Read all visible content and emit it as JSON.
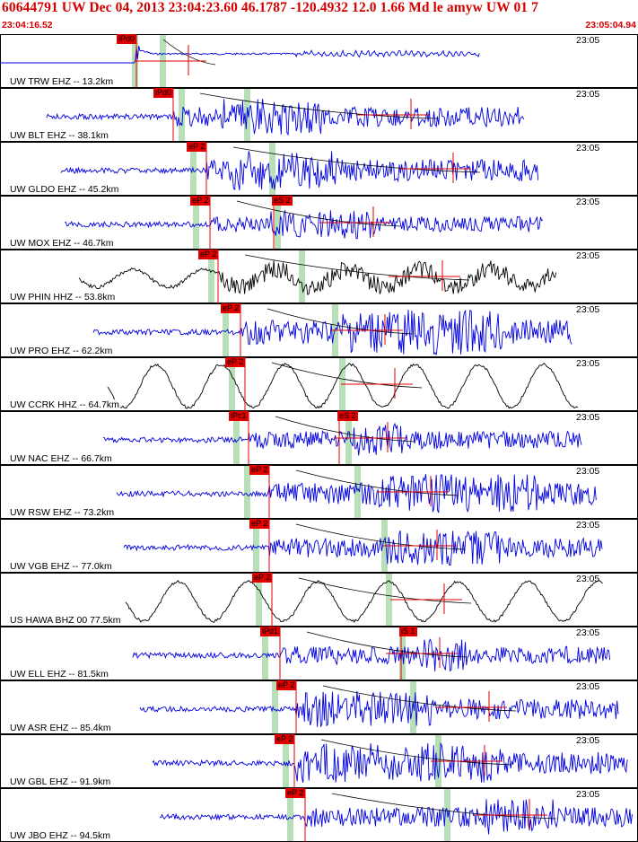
{
  "header": {
    "title": "60644791 UW Dec 04, 2013 23:04:23.60    46.1787 -120.4932 12.0 1.66 Md le amyw UW 01    7",
    "time_start": "23:04:16.52",
    "time_end": "23:05:04.94"
  },
  "colors": {
    "header_text": "#d40000",
    "trace_blue": "#0000e0",
    "trace_black": "#000000",
    "pick_red": "#e00000",
    "shade_green": "#b8e0b8",
    "border": "#000000"
  },
  "panels": [
    {
      "label": "UW TRW EHZ -- 13.2km",
      "time": "23:05",
      "color": "blue",
      "picks": [
        {
          "text": "iPd0"
        }
      ]
    },
    {
      "label": "UW BLT EHZ -- 38.1km",
      "time": "23:05",
      "color": "blue",
      "picks": [
        {
          "text": "iPd0"
        }
      ]
    },
    {
      "label": "UW GLDO EHZ -- 45.2km",
      "time": "23:05",
      "color": "blue",
      "picks": [
        {
          "text": "eP 2"
        }
      ]
    },
    {
      "label": "UW MOX EHZ -- 46.7km",
      "time": "23:05",
      "color": "blue",
      "picks": [
        {
          "text": "eP 2"
        },
        {
          "text": "eS 2"
        }
      ]
    },
    {
      "label": "UW PHIN HHZ -- 53.8km",
      "time": "23:05",
      "color": "black",
      "picks": [
        {
          "text": "eP 2"
        }
      ]
    },
    {
      "label": "UW PRO EHZ -- 62.2km",
      "time": "23:05",
      "color": "blue",
      "picks": [
        {
          "text": "eP 2"
        }
      ]
    },
    {
      "label": "UW CCRK HHZ -- 64.7km",
      "time": "23:05",
      "color": "black",
      "picks": [
        {
          "text": "eP 2"
        }
      ]
    },
    {
      "label": "UW NAC EHZ -- 66.7km",
      "time": "23:05",
      "color": "blue",
      "picks": [
        {
          "text": "iPc1"
        },
        {
          "text": "eS 2"
        }
      ]
    },
    {
      "label": "UW RSW EHZ -- 73.2km",
      "time": "23:05",
      "color": "blue",
      "picks": [
        {
          "text": "eP 2"
        }
      ]
    },
    {
      "label": "UW VGB EHZ -- 77.0km",
      "time": "23:05",
      "color": "blue",
      "picks": [
        {
          "text": "eP 2"
        }
      ]
    },
    {
      "label": "US HAWA BHZ 00 77.5km",
      "time": "23:05",
      "color": "black",
      "picks": [
        {
          "text": "eP 2"
        }
      ]
    },
    {
      "label": "UW ELL EHZ -- 81.5km",
      "time": "23:05",
      "color": "blue",
      "picks": [
        {
          "text": "iPd1"
        },
        {
          "text": "iS 1"
        }
      ]
    },
    {
      "label": "UW ASR EHZ -- 85.4km",
      "time": "23:05",
      "color": "blue",
      "picks": [
        {
          "text": "eP 2"
        }
      ]
    },
    {
      "label": "UW GBL EHZ -- 91.9km",
      "time": "23:05",
      "color": "blue",
      "picks": [
        {
          "text": "eP 2"
        }
      ]
    },
    {
      "label": "UW JBO EHZ -- 94.5km",
      "time": "23:05",
      "color": "blue",
      "picks": [
        {
          "text": "eP 2"
        }
      ]
    }
  ]
}
